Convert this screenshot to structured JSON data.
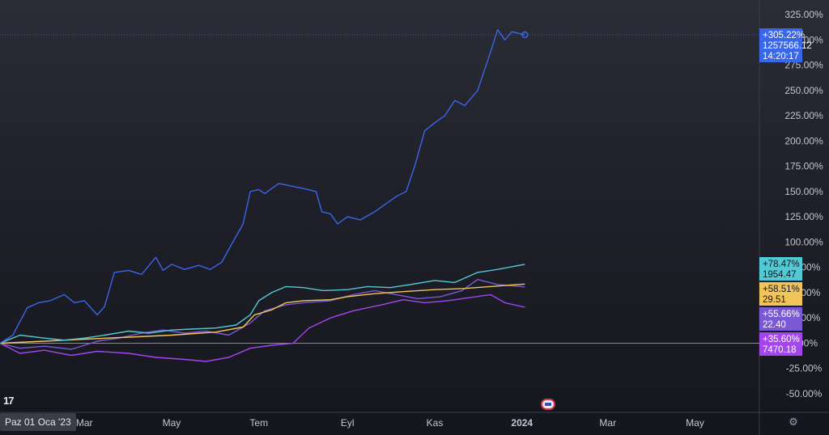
{
  "chart_data": {
    "type": "line",
    "yformat": "percent",
    "ylim": [
      -60,
      335
    ],
    "yticks": [
      325,
      300,
      275,
      250,
      225,
      200,
      175,
      150,
      125,
      100,
      75,
      50,
      25,
      0,
      -25,
      -50
    ],
    "ytick_labels": [
      "325.00%",
      "300.00%",
      "275.00%",
      "250.00%",
      "225.00%",
      "200.00%",
      "175.00%",
      "150.00%",
      "125.00%",
      "100.00%",
      "75.00%",
      "50.00%",
      "25.00%",
      "0.00%",
      "-25.00%",
      "-50.00%"
    ],
    "x_range": [
      "2023-01-01",
      "2024-06-15"
    ],
    "x_ticks": [
      {
        "date": "2023-03-01",
        "label": "Mar",
        "bold": false
      },
      {
        "date": "2023-05-01",
        "label": "May",
        "bold": false
      },
      {
        "date": "2023-07-01",
        "label": "Tem",
        "bold": false
      },
      {
        "date": "2023-09-01",
        "label": "Eyl",
        "bold": false
      },
      {
        "date": "2023-11-01",
        "label": "Kas",
        "bold": false
      },
      {
        "date": "2024-01-01",
        "label": "2024",
        "bold": true
      },
      {
        "date": "2024-03-01",
        "label": "Mar",
        "bold": false
      },
      {
        "date": "2024-05-01",
        "label": "May",
        "bold": false
      }
    ],
    "crosshair_date_label": "Paz 01 Oca '23",
    "baseline": 0,
    "series": [
      {
        "color": "#3a66e8",
        "badge": {
          "pct": "+305.22%",
          "value": "1257566.12",
          "time": "14:20:17"
        },
        "points": [
          [
            "2023-01-01",
            0
          ],
          [
            "2023-01-10",
            8
          ],
          [
            "2023-01-20",
            35
          ],
          [
            "2023-01-28",
            40
          ],
          [
            "2023-02-05",
            42
          ],
          [
            "2023-02-15",
            48
          ],
          [
            "2023-02-22",
            40
          ],
          [
            "2023-03-01",
            42
          ],
          [
            "2023-03-10",
            28
          ],
          [
            "2023-03-15",
            36
          ],
          [
            "2023-03-22",
            70
          ],
          [
            "2023-04-01",
            72
          ],
          [
            "2023-04-10",
            68
          ],
          [
            "2023-04-20",
            85
          ],
          [
            "2023-04-25",
            72
          ],
          [
            "2023-05-01",
            78
          ],
          [
            "2023-05-10",
            73
          ],
          [
            "2023-05-20",
            77
          ],
          [
            "2023-05-28",
            73
          ],
          [
            "2023-06-05",
            80
          ],
          [
            "2023-06-12",
            98
          ],
          [
            "2023-06-20",
            118
          ],
          [
            "2023-06-25",
            150
          ],
          [
            "2023-07-01",
            152
          ],
          [
            "2023-07-05",
            148
          ],
          [
            "2023-07-15",
            158
          ],
          [
            "2023-07-25",
            155
          ],
          [
            "2023-08-01",
            153
          ],
          [
            "2023-08-10",
            150
          ],
          [
            "2023-08-14",
            130
          ],
          [
            "2023-08-20",
            128
          ],
          [
            "2023-08-25",
            118
          ],
          [
            "2023-09-01",
            125
          ],
          [
            "2023-09-10",
            122
          ],
          [
            "2023-09-20",
            130
          ],
          [
            "2023-09-28",
            138
          ],
          [
            "2023-10-05",
            145
          ],
          [
            "2023-10-12",
            150
          ],
          [
            "2023-10-18",
            175
          ],
          [
            "2023-10-25",
            210
          ],
          [
            "2023-11-01",
            218
          ],
          [
            "2023-11-08",
            225
          ],
          [
            "2023-11-15",
            240
          ],
          [
            "2023-11-22",
            235
          ],
          [
            "2023-12-01",
            250
          ],
          [
            "2023-12-10",
            288
          ],
          [
            "2023-12-15",
            310
          ],
          [
            "2023-12-20",
            300
          ],
          [
            "2023-12-25",
            308
          ],
          [
            "2024-01-03",
            305
          ]
        ]
      },
      {
        "color": "#54c9d6",
        "badge": {
          "pct": "+78.47%",
          "value": "1954.47"
        },
        "points": [
          [
            "2023-01-01",
            0
          ],
          [
            "2023-01-15",
            8
          ],
          [
            "2023-02-01",
            5
          ],
          [
            "2023-02-15",
            3
          ],
          [
            "2023-03-01",
            5
          ],
          [
            "2023-03-15",
            8
          ],
          [
            "2023-04-01",
            12
          ],
          [
            "2023-04-15",
            10
          ],
          [
            "2023-05-01",
            13
          ],
          [
            "2023-05-15",
            14
          ],
          [
            "2023-06-01",
            15
          ],
          [
            "2023-06-15",
            18
          ],
          [
            "2023-06-25",
            28
          ],
          [
            "2023-07-01",
            42
          ],
          [
            "2023-07-10",
            50
          ],
          [
            "2023-07-20",
            56
          ],
          [
            "2023-08-01",
            55
          ],
          [
            "2023-08-15",
            52
          ],
          [
            "2023-09-01",
            53
          ],
          [
            "2023-09-15",
            56
          ],
          [
            "2023-10-01",
            55
          ],
          [
            "2023-10-15",
            58
          ],
          [
            "2023-11-01",
            62
          ],
          [
            "2023-11-15",
            60
          ],
          [
            "2023-12-01",
            70
          ],
          [
            "2023-12-15",
            73
          ],
          [
            "2024-01-03",
            78
          ]
        ]
      },
      {
        "color": "#f2c55a",
        "badge": {
          "pct": "+58.51%",
          "value": "29.51"
        },
        "points": [
          [
            "2023-01-01",
            0
          ],
          [
            "2023-02-01",
            2
          ],
          [
            "2023-03-01",
            4
          ],
          [
            "2023-04-01",
            6
          ],
          [
            "2023-05-01",
            8
          ],
          [
            "2023-06-01",
            11
          ],
          [
            "2023-06-20",
            16
          ],
          [
            "2023-06-28",
            28
          ],
          [
            "2023-07-10",
            33
          ],
          [
            "2023-07-20",
            40
          ],
          [
            "2023-08-01",
            42
          ],
          [
            "2023-08-20",
            43
          ],
          [
            "2023-09-01",
            46
          ],
          [
            "2023-09-20",
            49
          ],
          [
            "2023-10-10",
            51
          ],
          [
            "2023-11-01",
            53
          ],
          [
            "2023-11-20",
            54
          ],
          [
            "2023-12-10",
            56
          ],
          [
            "2024-01-03",
            58.5
          ]
        ]
      },
      {
        "color": "#7b58d6",
        "badge": {
          "pct": "+55.66%",
          "value": "22.40"
        },
        "points": [
          [
            "2023-01-01",
            0
          ],
          [
            "2023-01-15",
            -5
          ],
          [
            "2023-02-01",
            -3
          ],
          [
            "2023-02-20",
            -6
          ],
          [
            "2023-03-10",
            2
          ],
          [
            "2023-03-25",
            5
          ],
          [
            "2023-04-10",
            10
          ],
          [
            "2023-04-25",
            13
          ],
          [
            "2023-05-10",
            10
          ],
          [
            "2023-05-25",
            12
          ],
          [
            "2023-06-10",
            8
          ],
          [
            "2023-06-25",
            20
          ],
          [
            "2023-07-05",
            32
          ],
          [
            "2023-07-20",
            38
          ],
          [
            "2023-08-01",
            40
          ],
          [
            "2023-08-20",
            42
          ],
          [
            "2023-09-05",
            48
          ],
          [
            "2023-09-20",
            52
          ],
          [
            "2023-10-05",
            48
          ],
          [
            "2023-10-20",
            44
          ],
          [
            "2023-11-05",
            46
          ],
          [
            "2023-11-20",
            52
          ],
          [
            "2023-12-01",
            63
          ],
          [
            "2023-12-15",
            58
          ],
          [
            "2024-01-03",
            55.7
          ]
        ]
      },
      {
        "color": "#a545f0",
        "badge": {
          "pct": "+35.60%",
          "value": "7470.18"
        },
        "points": [
          [
            "2023-01-01",
            0
          ],
          [
            "2023-01-15",
            -10
          ],
          [
            "2023-02-01",
            -7
          ],
          [
            "2023-02-20",
            -12
          ],
          [
            "2023-03-10",
            -8
          ],
          [
            "2023-04-01",
            -10
          ],
          [
            "2023-04-20",
            -14
          ],
          [
            "2023-05-10",
            -16
          ],
          [
            "2023-05-25",
            -18
          ],
          [
            "2023-06-10",
            -14
          ],
          [
            "2023-06-25",
            -5
          ],
          [
            "2023-07-10",
            -2
          ],
          [
            "2023-07-25",
            0
          ],
          [
            "2023-08-05",
            15
          ],
          [
            "2023-08-20",
            25
          ],
          [
            "2023-09-05",
            32
          ],
          [
            "2023-09-25",
            38
          ],
          [
            "2023-10-10",
            43
          ],
          [
            "2023-10-25",
            40
          ],
          [
            "2023-11-10",
            42
          ],
          [
            "2023-11-25",
            45
          ],
          [
            "2023-12-10",
            48
          ],
          [
            "2023-12-20",
            40
          ],
          [
            "2024-01-03",
            35.6
          ]
        ]
      }
    ]
  }
}
